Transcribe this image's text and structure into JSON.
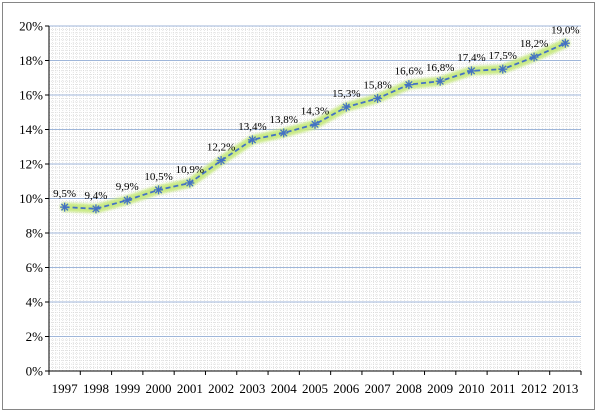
{
  "chart_data": {
    "type": "line",
    "categories": [
      "1997",
      "1998",
      "1999",
      "2000",
      "2001",
      "2002",
      "2003",
      "2004",
      "2005",
      "2006",
      "2007",
      "2008",
      "2009",
      "2010",
      "2011",
      "2012",
      "2013"
    ],
    "series": [
      {
        "values": [
          9.5,
          9.4,
          9.9,
          10.5,
          10.9,
          12.2,
          13.4,
          13.8,
          14.3,
          15.3,
          15.8,
          16.6,
          16.8,
          17.4,
          17.5,
          18.2,
          19.0
        ],
        "data_labels": [
          "9,5%",
          "9,4%",
          "9,9%",
          "10,5%",
          "10,9%",
          "12,2%",
          "13,4%",
          "13,8%",
          "14,3%",
          "15,3%",
          "15,8%",
          "16,6%",
          "16,8%",
          "17,4%",
          "17,5%",
          "18,2%",
          "19,0%"
        ],
        "color": "#4472C4",
        "glow_color": "#C4E879",
        "marker": "asterisk",
        "line_style": "dashed"
      }
    ],
    "y_ticks": [
      "0%",
      "2%",
      "4%",
      "6%",
      "8%",
      "10%",
      "12%",
      "14%",
      "16%",
      "18%",
      "20%"
    ],
    "ylim": [
      0,
      20
    ],
    "grid": true,
    "major_grid_color": "#9FB6D9",
    "minor_grid_color": "#D2D2D2",
    "title": "",
    "xlabel": "",
    "ylabel": ""
  }
}
